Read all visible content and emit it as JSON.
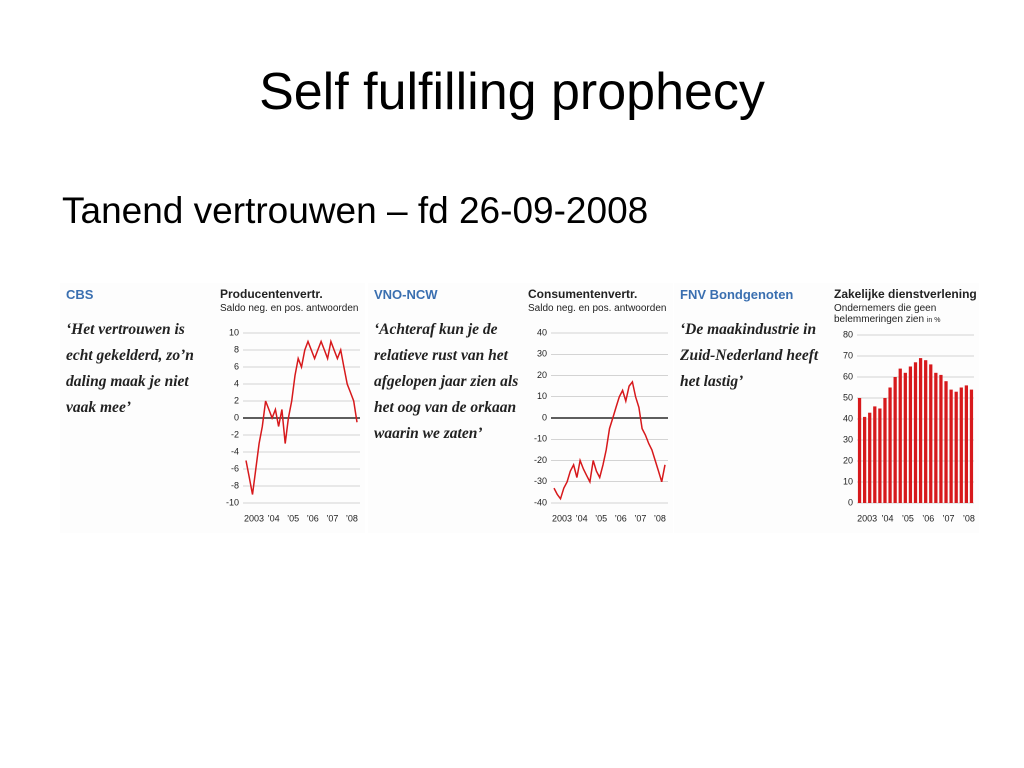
{
  "title": "Self fulfilling prophecy",
  "subtitle": "Tanend vertrouwen – fd 26-09-2008",
  "chart_data": [
    {
      "type": "line",
      "source": "CBS",
      "quote": "‘Het vertrouwen is echt gekelderd, zo’n daling maak je niet vaak mee’",
      "title": "Producentenvertr.",
      "subtitle": "Saldo neg. en pos. antwoorden",
      "categories": [
        "2003",
        null,
        null,
        null,
        null,
        null,
        "’04",
        null,
        null,
        null,
        null,
        null,
        "’05",
        null,
        null,
        null,
        null,
        null,
        "’06",
        null,
        null,
        null,
        null,
        null,
        "’07",
        null,
        null,
        null,
        null,
        null,
        "’08",
        null,
        null,
        null,
        null
      ],
      "values": [
        -5,
        -7,
        -9,
        -6,
        -3,
        -1,
        2,
        1,
        0,
        1,
        -1,
        1,
        -3,
        0,
        2,
        5,
        7,
        6,
        8,
        9,
        8,
        7,
        8,
        9,
        8,
        7,
        9,
        8,
        7,
        8,
        6,
        4,
        3,
        2,
        -0.5
      ],
      "color": "#d7191c",
      "ylim": [
        -10,
        10
      ],
      "yticks": [
        -10,
        -8,
        -6,
        -4,
        -2,
        0,
        2,
        4,
        6,
        8,
        10
      ],
      "grid": true
    },
    {
      "type": "line",
      "source": "VNO-NCW",
      "quote": "‘Achteraf kun je de relatieve rust van het afgelopen jaar zien als het oog van de orkaan waarin we zaten’",
      "title": "Consumentenvertr.",
      "subtitle": "Saldo neg. en pos. antwoorden",
      "categories": [
        "2003",
        null,
        null,
        null,
        null,
        null,
        "’04",
        null,
        null,
        null,
        null,
        null,
        "’05",
        null,
        null,
        null,
        null,
        null,
        "’06",
        null,
        null,
        null,
        null,
        null,
        "’07",
        null,
        null,
        null,
        null,
        null,
        "’08",
        null,
        null,
        null,
        null
      ],
      "values": [
        -33,
        -36,
        -38,
        -33,
        -30,
        -25,
        -22,
        -28,
        -20,
        -24,
        -27,
        -30,
        -20,
        -25,
        -28,
        -22,
        -15,
        -5,
        0,
        5,
        10,
        13,
        8,
        15,
        17,
        10,
        5,
        -5,
        -8,
        -12,
        -15,
        -20,
        -25,
        -30,
        -22
      ],
      "color": "#d7191c",
      "ylim": [
        -40,
        40
      ],
      "yticks": [
        -40,
        -30,
        -20,
        -10,
        0,
        10,
        20,
        30,
        40
      ],
      "grid": true
    },
    {
      "type": "bar",
      "source": "FNV Bondgenoten",
      "quote": "‘De maakindustrie in Zuid-Nederland heeft het lastig’",
      "title": "Zakelijke dienstverlening",
      "subtitle": "Ondernemers die geen belemmeringen zien",
      "unit": "in %",
      "categories": [
        "2003",
        null,
        null,
        null,
        "’04",
        null,
        null,
        null,
        "’05",
        null,
        null,
        null,
        "’06",
        null,
        null,
        null,
        "’07",
        null,
        null,
        null,
        "’08",
        null,
        null
      ],
      "values": [
        50,
        41,
        43,
        46,
        45,
        50,
        55,
        60,
        64,
        62,
        65,
        67,
        69,
        68,
        66,
        62,
        61,
        58,
        54,
        53,
        55,
        56,
        54
      ],
      "color": "#d7191c",
      "ylim": [
        0,
        80
      ],
      "yticks": [
        0,
        10,
        20,
        30,
        40,
        50,
        60,
        70,
        80
      ],
      "grid": true
    }
  ]
}
